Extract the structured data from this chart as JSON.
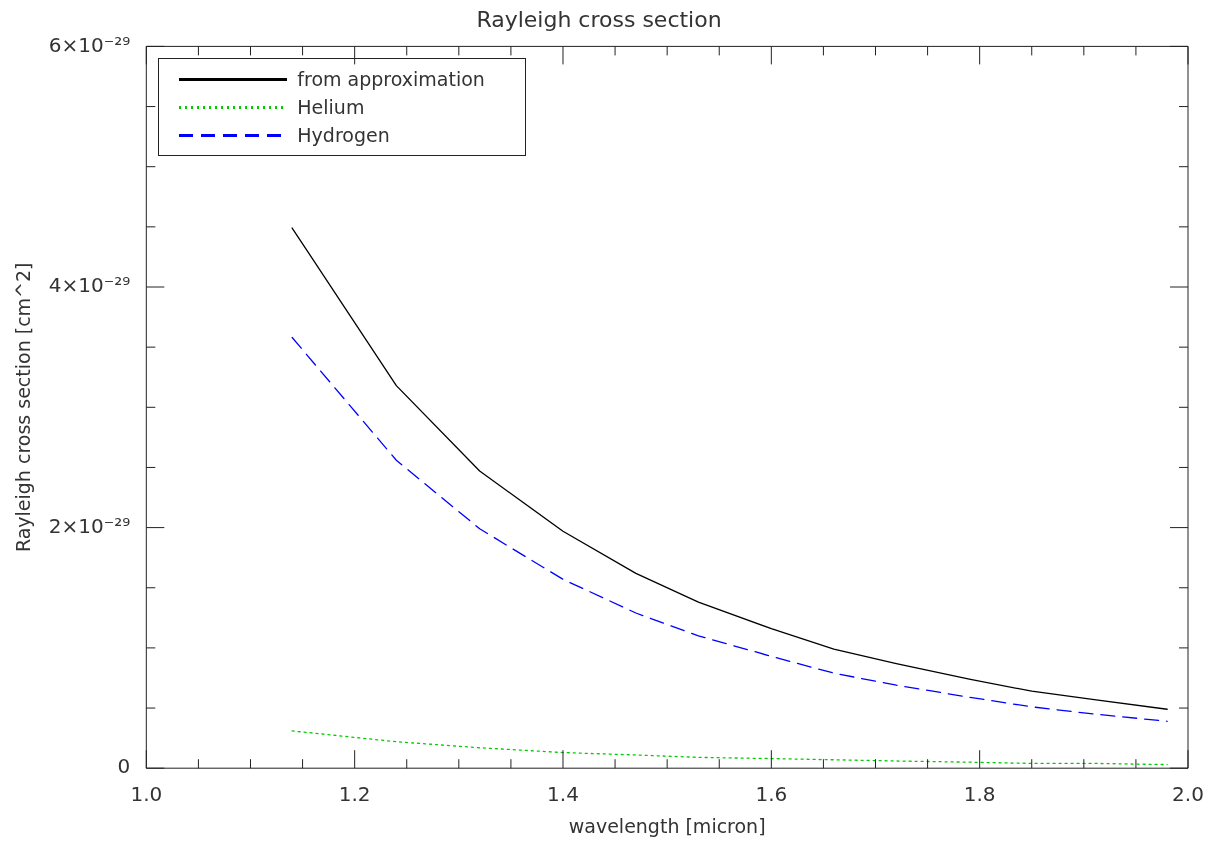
{
  "chart_data": {
    "type": "line",
    "title": "Rayleigh cross section",
    "xlabel": "wavelength [micron]",
    "ylabel": "Rayleigh cross section [cm^2]",
    "x": [
      1.14,
      1.24,
      1.32,
      1.4,
      1.47,
      1.53,
      1.6,
      1.66,
      1.72,
      1.79,
      1.85,
      1.91,
      1.98
    ],
    "series": [
      {
        "name": "from approximation",
        "color": "#000000",
        "line_style": "solid",
        "values": [
          4.49e-29,
          3.18e-29,
          2.47e-29,
          1.97e-29,
          1.62e-29,
          1.38e-29,
          1.16e-29,
          9.9e-30,
          8.7e-30,
          7.4e-30,
          6.4e-30,
          5.7e-30,
          4.9e-30
        ]
      },
      {
        "name": "Helium",
        "color": "#00cc00",
        "line_style": "dotted",
        "values": [
          3.1e-30,
          2.2e-30,
          1.7e-30,
          1.3e-30,
          1.1e-30,
          9e-31,
          8e-31,
          7e-31,
          6e-31,
          5e-31,
          4e-31,
          4e-31,
          3e-31
        ]
      },
      {
        "name": "Hydrogen",
        "color": "#0000ff",
        "line_style": "dashed",
        "values": [
          3.58e-29,
          2.56e-29,
          1.99e-29,
          1.57e-29,
          1.29e-29,
          1.1e-29,
          9.3e-30,
          7.9e-30,
          6.9e-30,
          5.9e-30,
          5.1e-30,
          4.5e-30,
          3.9e-30
        ]
      }
    ],
    "xlim": [
      1.0,
      2.0
    ],
    "xticks": [
      {
        "value": 1.0,
        "label": "1.0"
      },
      {
        "value": 1.05,
        "label": null
      },
      {
        "value": 1.1,
        "label": null
      },
      {
        "value": 1.15,
        "label": null
      },
      {
        "value": 1.2,
        "label": "1.2"
      },
      {
        "value": 1.25,
        "label": null
      },
      {
        "value": 1.3,
        "label": null
      },
      {
        "value": 1.35,
        "label": null
      },
      {
        "value": 1.4,
        "label": "1.4"
      },
      {
        "value": 1.45,
        "label": null
      },
      {
        "value": 1.5,
        "label": null
      },
      {
        "value": 1.55,
        "label": null
      },
      {
        "value": 1.6,
        "label": "1.6"
      },
      {
        "value": 1.65,
        "label": null
      },
      {
        "value": 1.7,
        "label": null
      },
      {
        "value": 1.75,
        "label": null
      },
      {
        "value": 1.8,
        "label": "1.8"
      },
      {
        "value": 1.85,
        "label": null
      },
      {
        "value": 1.9,
        "label": null
      },
      {
        "value": 1.95,
        "label": null
      },
      {
        "value": 2.0,
        "label": "2.0"
      }
    ],
    "ylim": [
      0,
      6e-29
    ],
    "yticks": [
      0,
      {
        "value": 5e-30,
        "label": null
      },
      {
        "value": 1e-29,
        "label": null
      },
      {
        "value": 1.5e-29,
        "label": null
      },
      {
        "value": 2e-29,
        "label": "2×10⁻²⁹"
      },
      {
        "value": 2.5e-29,
        "label": null
      },
      {
        "value": 3e-29,
        "label": null
      },
      {
        "value": 3.5e-29,
        "label": null
      },
      {
        "value": 4e-29,
        "label": "4×10⁻²⁹"
      },
      {
        "value": 4.5e-29,
        "label": null
      },
      {
        "value": 5e-29,
        "label": null
      },
      {
        "value": 5.5e-29,
        "label": null
      },
      {
        "value": 6e-29,
        "label": "6×10⁻²⁹"
      }
    ],
    "grid": false,
    "legend": "top left",
    "marker": "none"
  }
}
